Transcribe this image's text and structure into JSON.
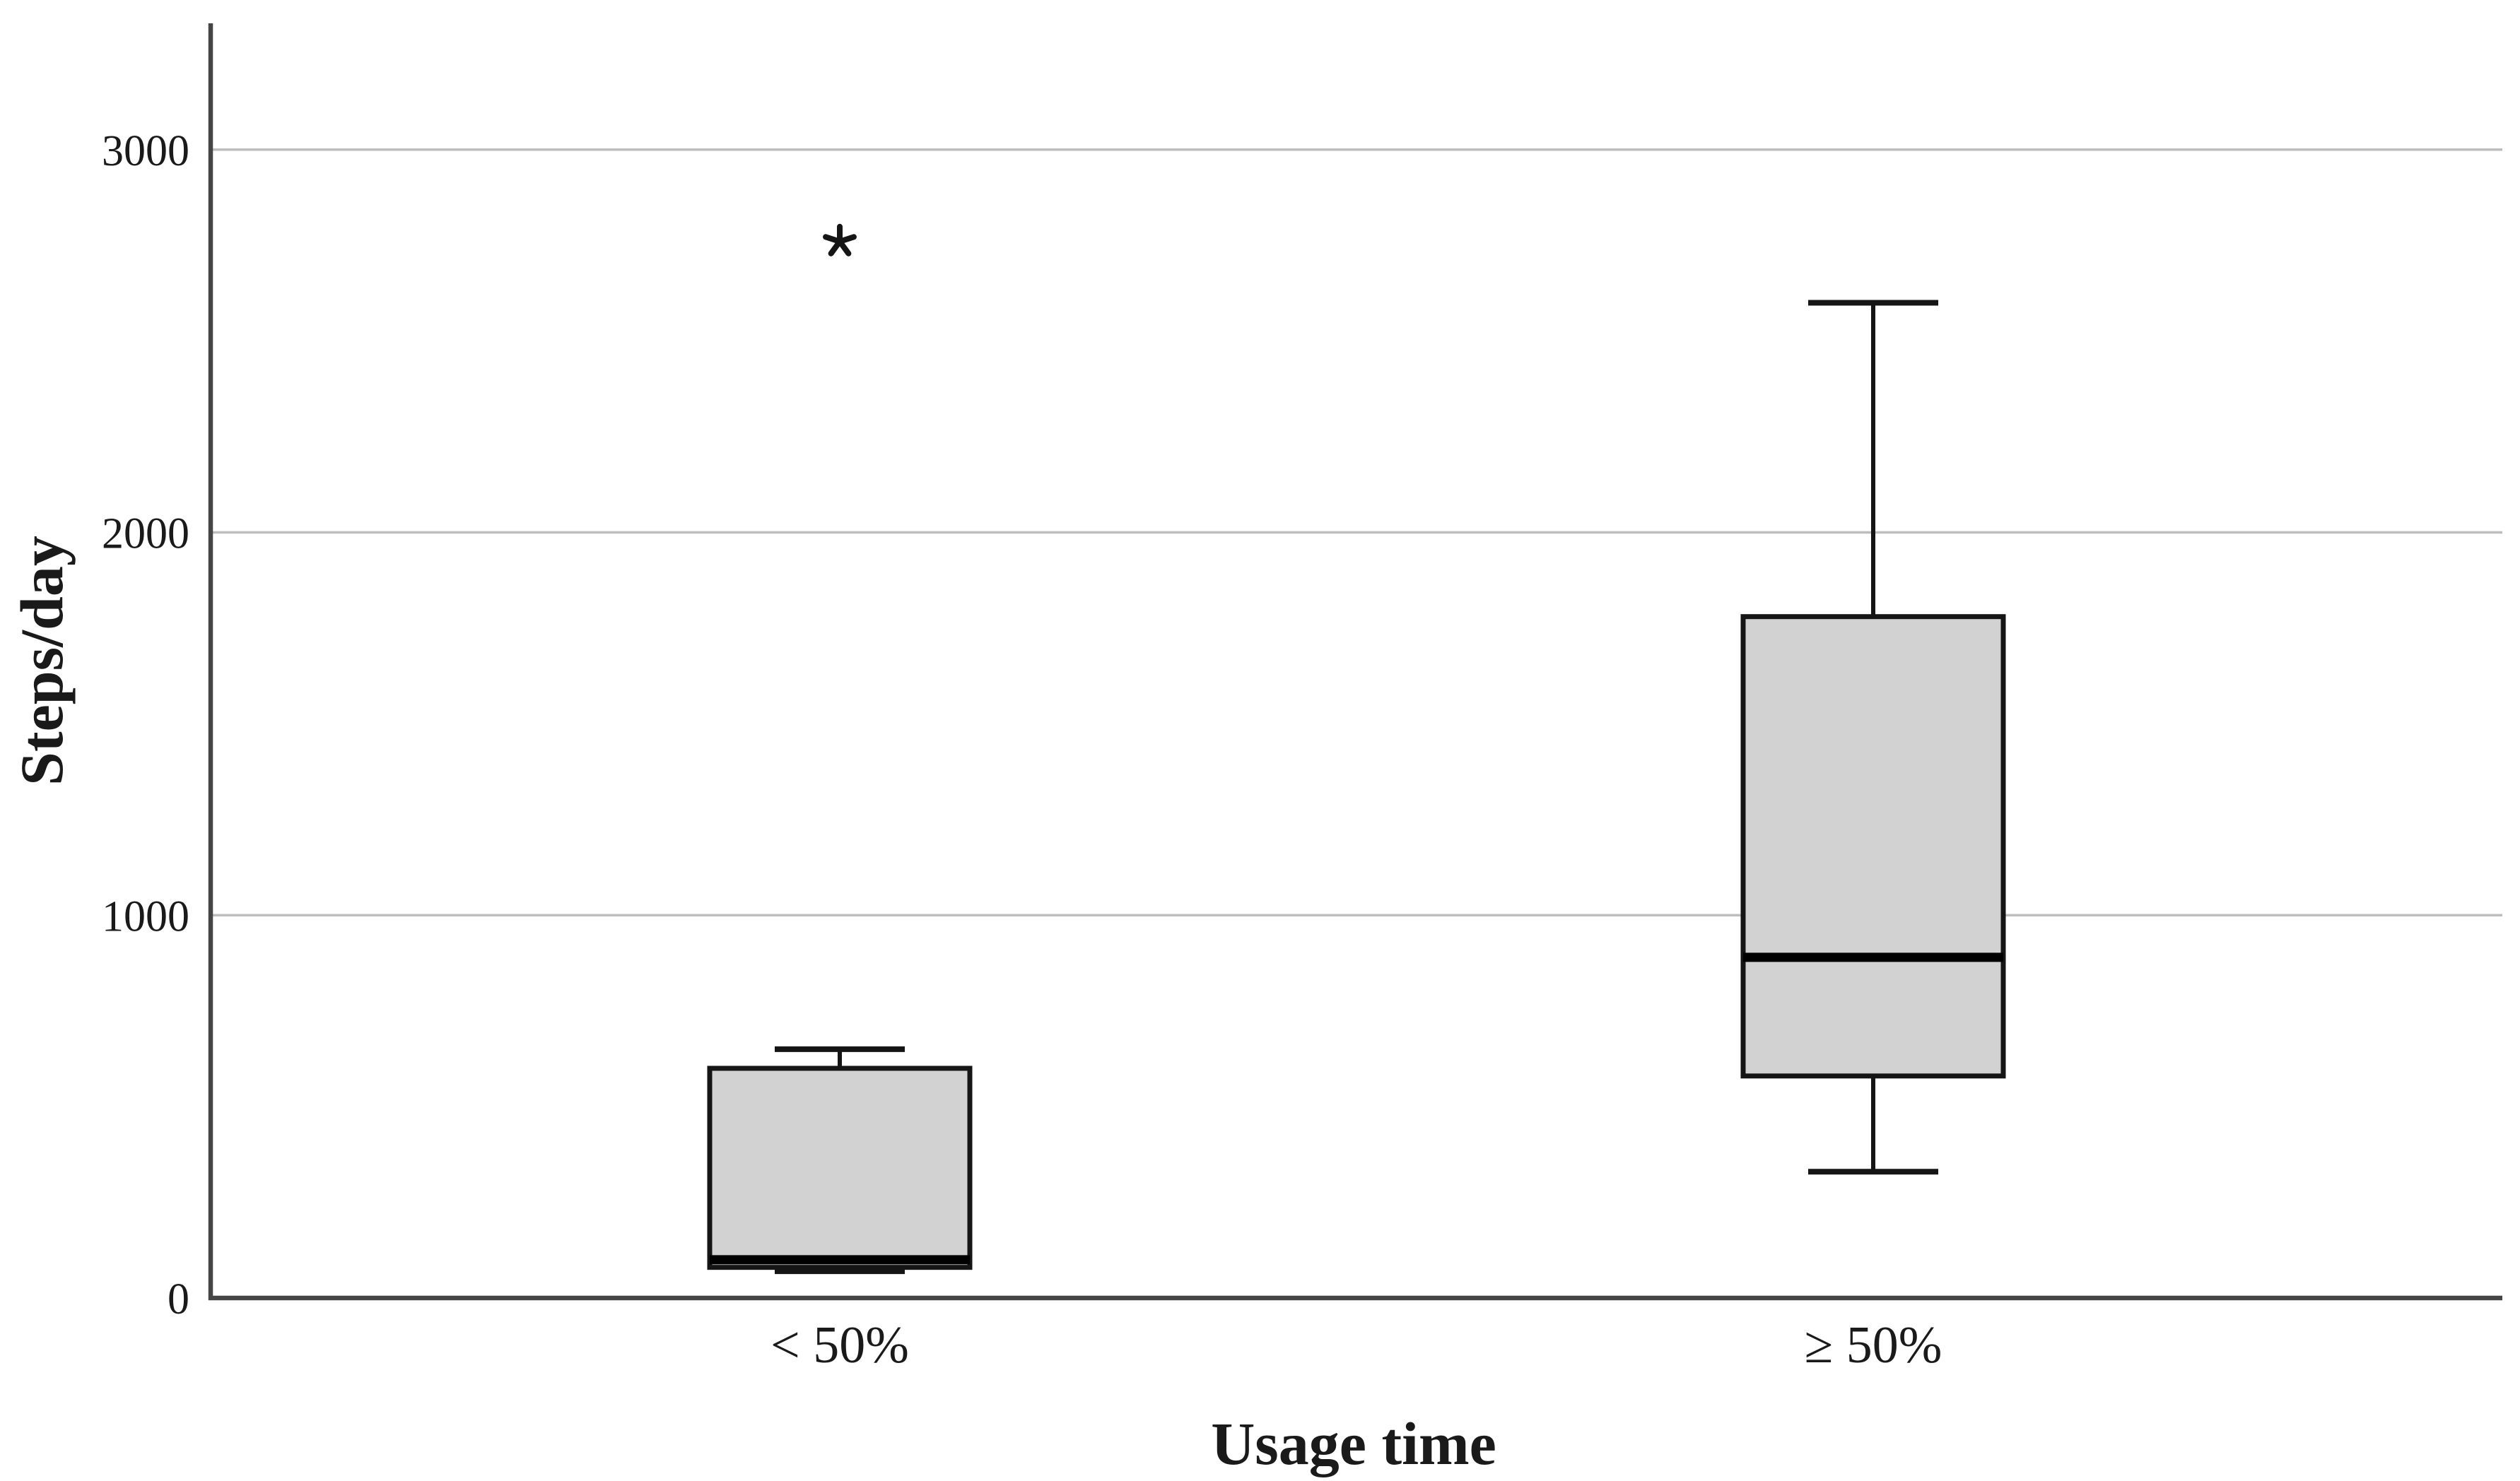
{
  "chart_data": {
    "type": "boxplot",
    "title": "",
    "xlabel": "Usage time",
    "ylabel": "Steps/day",
    "categories": [
      "< 50%",
      "≥ 50%"
    ],
    "y_axis": {
      "min": 0,
      "max": 3330,
      "ticks": [
        0,
        1000,
        2000,
        3000
      ]
    },
    "grid": "horizontal-light-gray",
    "legend": "none",
    "series": [
      {
        "category": "< 50%",
        "whisker_low": 70,
        "q1": 80,
        "median": 100,
        "q3": 600,
        "whisker_high": 650,
        "outliers": [
          {
            "value": 2760,
            "marker": "star"
          }
        ]
      },
      {
        "category": "≥ 50%",
        "whisker_low": 330,
        "q1": 580,
        "median": 890,
        "q3": 1780,
        "whisker_high": 2600,
        "outliers": []
      }
    ],
    "colors": {
      "box_fill": "#d2d2d2",
      "box_stroke": "#151515",
      "median": "#000000",
      "whisker": "#151515",
      "gridline": "#bdbdbd",
      "axis": "#454545",
      "text": "#1a1a1a",
      "background": "#ffffff",
      "outlier": "#151515"
    }
  }
}
